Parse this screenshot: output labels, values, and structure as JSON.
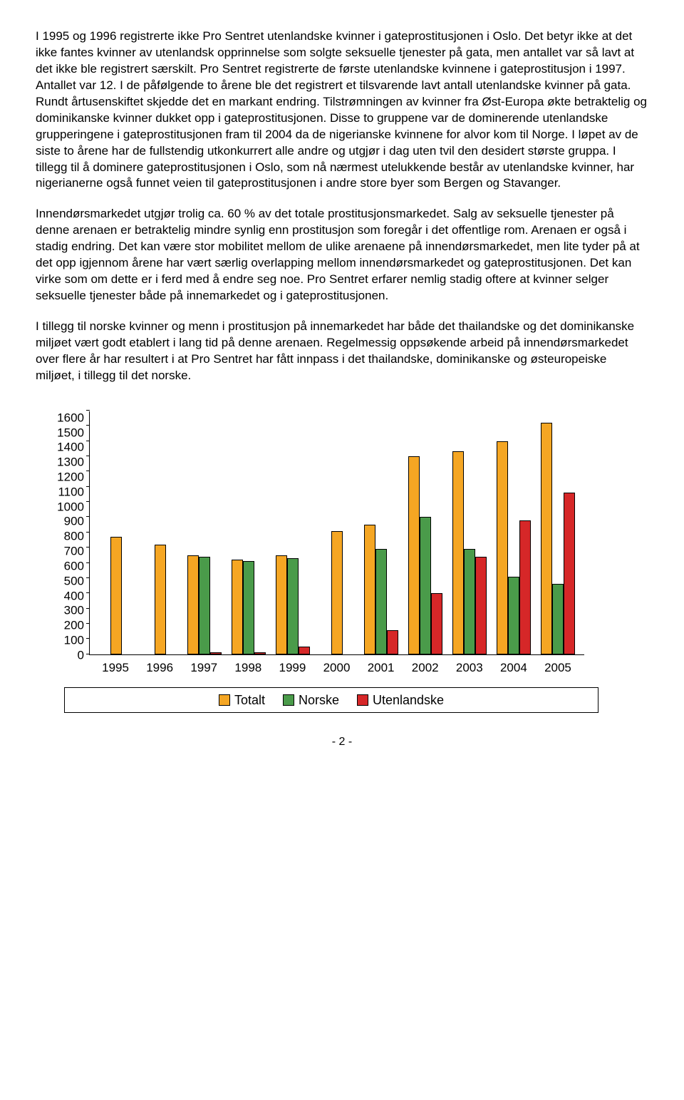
{
  "paragraphs": {
    "p1": "I 1995 og 1996 registrerte ikke Pro Sentret utenlandske kvinner i gateprostitusjonen i Oslo. Det betyr ikke at det ikke fantes kvinner av utenlandsk opprinnelse som solgte seksuelle tjenester på gata, men antallet var så lavt at det ikke ble registrert særskilt. Pro Sentret registrerte de første utenlandske kvinnene i gateprostitusjon i 1997. Antallet var 12. I de påfølgende to årene ble det registrert et tilsvarende lavt antall utenlandske kvinner på gata. Rundt årtusenskiftet skjedde det en markant endring. Tilstrømningen av kvinner fra Øst-Europa økte betraktelig og dominikanske kvinner dukket opp i gateprostitusjonen. Disse to gruppene var de dominerende utenlandske grupperingene i gateprostitusjonen fram til 2004 da de nigerianske kvinnene for alvor kom til Norge. I løpet av de siste to årene har de fullstendig utkonkurrert alle andre og utgjør i dag uten tvil den desidert største gruppa. I tillegg til å dominere gateprostitusjonen i Oslo, som nå nærmest utelukkende består av utenlandske kvinner, har nigerianerne også funnet veien til gateprostitusjonen i andre store byer som Bergen og Stavanger.",
    "p2": "Innendørsmarkedet utgjør trolig ca. 60 % av det totale prostitusjonsmarkedet. Salg av seksuelle tjenester på denne arenaen er betraktelig mindre synlig enn prostitusjon som foregår i det offentlige rom. Arenaen er også i stadig endring. Det kan være stor mobilitet mellom de ulike arenaene på innendørsmarkedet, men lite tyder på at det opp igjennom årene har vært særlig overlapping mellom innendørsmarkedet og gateprostitusjonen. Det kan virke som om dette er i ferd med å endre seg noe. Pro Sentret erfarer nemlig stadig oftere at kvinner selger seksuelle tjenester både på innemarkedet og i gateprostitusjonen.",
    "p3": "I tillegg til norske kvinner og menn i prostitusjon på innemarkedet har både det thailandske og det dominikanske miljøet vært godt etablert i lang tid på denne arenaen. Regelmessig oppsøkende arbeid på innendørsmarkedet over flere år har resultert i at Pro Sentret har fått innpass i det thailandske, dominikanske og østeuropeiske miljøet, i tillegg til det norske."
  },
  "chart": {
    "type": "bar",
    "ymax": 1600,
    "ymin": 0,
    "ystep": 100,
    "yticks": [
      "1600",
      "1500",
      "1400",
      "1300",
      "1200",
      "1100",
      "1000",
      "900",
      "800",
      "700",
      "600",
      "500",
      "400",
      "300",
      "200",
      "100",
      "0"
    ],
    "years": [
      "1995",
      "1996",
      "1997",
      "1998",
      "1999",
      "2000",
      "2001",
      "2002",
      "2003",
      "2004",
      "2005"
    ],
    "series": {
      "totalt": {
        "label": "Totalt",
        "color": "#f5a623",
        "values": [
          770,
          720,
          650,
          620,
          650,
          810,
          850,
          1300,
          1330,
          1400,
          1520
        ]
      },
      "norske": {
        "label": "Norske",
        "color": "#4a9b4a",
        "values": [
          null,
          null,
          640,
          610,
          630,
          null,
          690,
          900,
          690,
          510,
          460
        ]
      },
      "utenlandske": {
        "label": "Utenlandske",
        "color": "#d62728",
        "values": [
          null,
          null,
          12,
          15,
          50,
          null,
          160,
          400,
          640,
          880,
          1060
        ]
      }
    },
    "bar_border": "#000000",
    "axis_color": "#000000"
  },
  "page_number": "- 2 -"
}
